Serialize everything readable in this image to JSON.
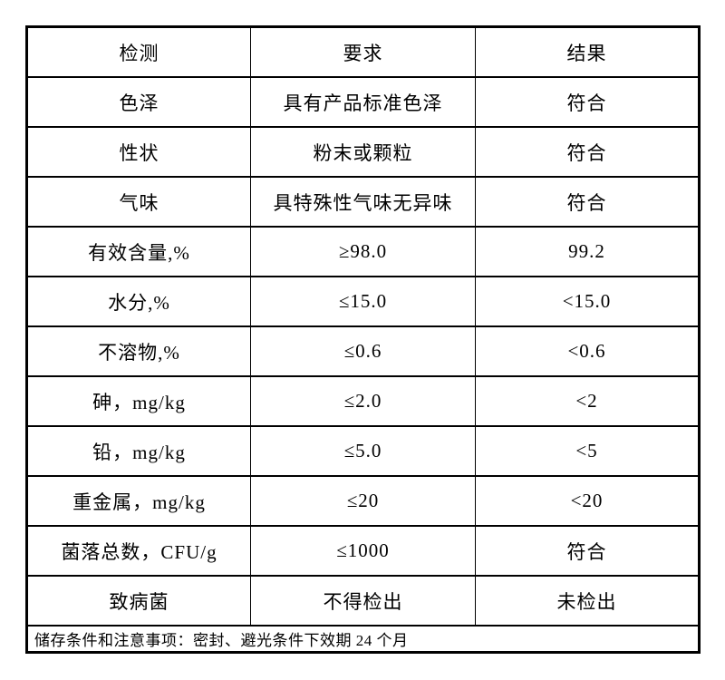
{
  "page": {
    "background_color": "#ffffff",
    "text_color": "#000000",
    "border_color": "#000000"
  },
  "table": {
    "headers": [
      {
        "label": "检测"
      },
      {
        "label": "要求"
      },
      {
        "label": "结果"
      }
    ],
    "rows": [
      {
        "test": "色泽",
        "requirement": "具有产品标准色泽",
        "result": "符合"
      },
      {
        "test": "性状",
        "requirement": "粉末或颗粒",
        "result": "符合"
      },
      {
        "test": "气味",
        "requirement": "具特殊性气味无异味",
        "result": "符合"
      },
      {
        "test": "有效含量,%",
        "requirement": "≥98.0",
        "result": "99.2"
      },
      {
        "test": "水分,%",
        "requirement": "≤15.0",
        "result": "<15.0"
      },
      {
        "test": "不溶物,%",
        "requirement": "≤0.6",
        "result": "<0.6"
      },
      {
        "test": "砷，mg/kg",
        "requirement": "≤2.0",
        "result": "<2"
      },
      {
        "test": "铅，mg/kg",
        "requirement": "≤5.0",
        "result": "<5"
      },
      {
        "test": "重金属，mg/kg",
        "requirement": "≤20",
        "result": "<20"
      },
      {
        "test": "菌落总数，CFU/g",
        "requirement": "≤1000",
        "result": "符合"
      },
      {
        "test": "致病菌",
        "requirement": "不得检出",
        "result": "未检出"
      }
    ],
    "footer_note": "储存条件和注意事项：密封、避光条件下效期 24 个月"
  }
}
